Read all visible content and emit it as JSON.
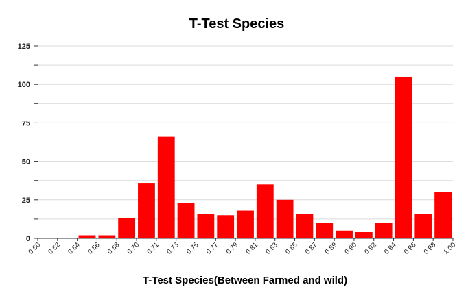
{
  "chart_data": {
    "type": "bar",
    "title": "T-Test Species",
    "xlabel": "T-Test Species(Between Farmed and wild)",
    "ylabel": "",
    "ylim": [
      0,
      125
    ],
    "yticks": [
      "0",
      "25",
      "50",
      "75",
      "100",
      "125"
    ],
    "xticks": [
      "0.60",
      "0.62",
      "0.64",
      "0.66",
      "0.68",
      "0.70",
      "0.71",
      "0.73",
      "0.75",
      "0.77",
      "0.79",
      "0.81",
      "0.83",
      "0.85",
      "0.87",
      "0.89",
      "0.90",
      "0.92",
      "0.94",
      "0.96",
      "0.98",
      "1.00"
    ],
    "values": [
      0,
      0,
      2,
      2,
      13,
      36,
      66,
      23,
      16,
      15,
      18,
      35,
      25,
      16,
      10,
      5,
      4,
      10,
      105,
      16,
      30
    ],
    "bar_color": "#ff0000",
    "grid": true
  }
}
